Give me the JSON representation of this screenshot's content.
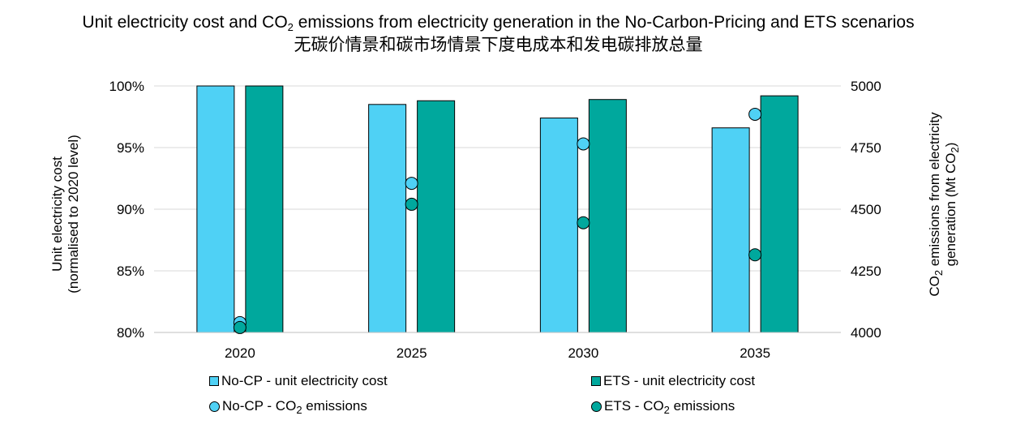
{
  "chart_data": {
    "type": "bar",
    "title_line1_before_sub": "Unit electricity cost and CO",
    "title_line1_sub": "2",
    "title_line1_after_sub": " emissions from electricity generation in the No-Carbon-Pricing and ETS scenarios",
    "title_line2": "无碳价情景和碳市场情景下度电成本和发电碳排放总量",
    "categories": [
      "2020",
      "2025",
      "2030",
      "2035"
    ],
    "y_axis": {
      "label_line1": "Unit electricity cost",
      "label_line2": "(normalised to 2020 level)",
      "min": 80,
      "max": 100,
      "ticks": [
        80,
        85,
        90,
        95,
        100
      ],
      "tick_labels": [
        "80%",
        "85%",
        "90%",
        "95%",
        "100%"
      ]
    },
    "y2_axis": {
      "label_line1_before_sub": "CO",
      "label_line1_sub": "2",
      "label_line1_after_sub": " emissions from electricity",
      "label_line2_before_sub": "generation (Mt CO",
      "label_line2_sub": "2",
      "label_line2_after_sub": ")",
      "min": 4000,
      "max": 5000,
      "ticks": [
        4000,
        4250,
        4500,
        4750,
        5000
      ],
      "tick_labels": [
        "4000",
        "4250",
        "4500",
        "4750",
        "5000"
      ]
    },
    "grid": true,
    "bar_series": [
      {
        "name": "No-CP - unit electricity cost",
        "axis": "left",
        "values": [
          100.0,
          98.5,
          97.4,
          96.6
        ],
        "color": "#4FD1F5"
      },
      {
        "name": "ETS - unit electricity cost",
        "axis": "left",
        "values": [
          100.0,
          98.8,
          98.9,
          99.2
        ],
        "color": "#00A89D"
      }
    ],
    "point_series": [
      {
        "name_before_sub": "No-CP - CO",
        "name_sub": "2",
        "name_after_sub": " emissions",
        "axis": "right",
        "values": [
          4040,
          4605,
          4765,
          4885
        ],
        "color": "#4FD1F5"
      },
      {
        "name_before_sub": "ETS - CO",
        "name_sub": "2",
        "name_after_sub": " emissions",
        "axis": "right",
        "values": [
          4020,
          4520,
          4445,
          4315
        ],
        "color": "#00A89D"
      }
    ],
    "legend_position": "bottom"
  }
}
